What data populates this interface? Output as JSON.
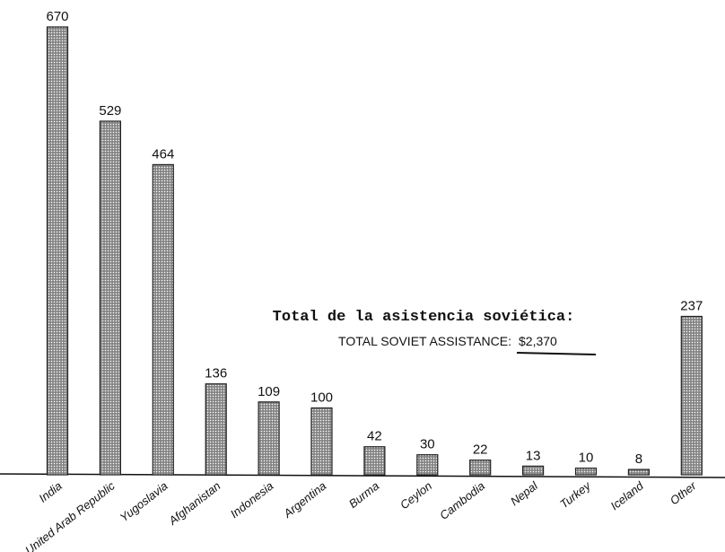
{
  "chart_data": {
    "type": "bar",
    "categories": [
      "India",
      "United Arab Republic",
      "Yugoslavia",
      "Afghanistan",
      "Indonesia",
      "Argentina",
      "Burma",
      "Ceylon",
      "Cambodia",
      "Nepal",
      "Turkey",
      "Iceland",
      "Other"
    ],
    "values": [
      670,
      529,
      464,
      136,
      109,
      100,
      42,
      30,
      22,
      13,
      10,
      8,
      237
    ],
    "color": "#9a9a9a",
    "annotations": [
      "Total de la asistencia soviética:",
      "TOTAL SOVIET ASSISTANCE:",
      "$2,370"
    ]
  }
}
